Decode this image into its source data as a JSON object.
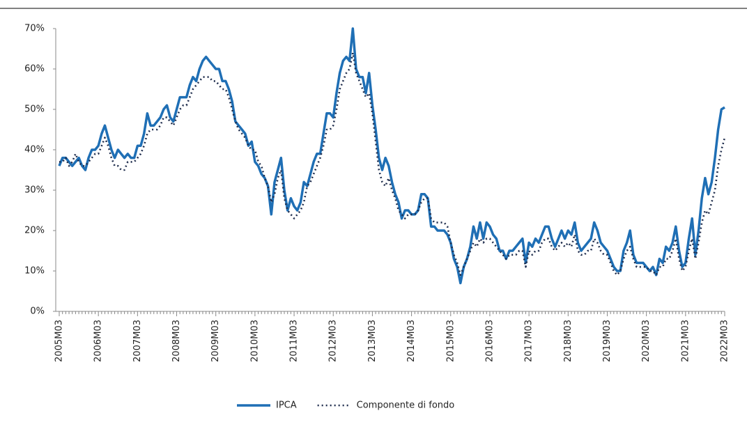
{
  "chart_data": {
    "type": "line",
    "categories": [
      "2005M03",
      null,
      null,
      null,
      null,
      null,
      null,
      null,
      null,
      null,
      null,
      null,
      "2006M03",
      null,
      null,
      null,
      null,
      null,
      null,
      null,
      null,
      null,
      null,
      null,
      "2007M03",
      null,
      null,
      null,
      null,
      null,
      null,
      null,
      null,
      null,
      null,
      null,
      "2008M03",
      null,
      null,
      null,
      null,
      null,
      null,
      null,
      null,
      null,
      null,
      null,
      "2009M03",
      null,
      null,
      null,
      null,
      null,
      null,
      null,
      null,
      null,
      null,
      null,
      "2010M03",
      null,
      null,
      null,
      null,
      null,
      null,
      null,
      null,
      null,
      null,
      null,
      "2011M03",
      null,
      null,
      null,
      null,
      null,
      null,
      null,
      null,
      null,
      null,
      null,
      "2012M03",
      null,
      null,
      null,
      null,
      null,
      null,
      null,
      null,
      null,
      null,
      null,
      "2013M03",
      null,
      null,
      null,
      null,
      null,
      null,
      null,
      null,
      null,
      null,
      null,
      "2014M03",
      null,
      null,
      null,
      null,
      null,
      null,
      null,
      null,
      null,
      null,
      null,
      "2015M03",
      null,
      null,
      null,
      null,
      null,
      null,
      null,
      null,
      null,
      null,
      null,
      "2016M03",
      null,
      null,
      null,
      null,
      null,
      null,
      null,
      null,
      null,
      null,
      null,
      "2017M03",
      null,
      null,
      null,
      null,
      null,
      null,
      null,
      null,
      null,
      null,
      null,
      "2018M03",
      null,
      null,
      null,
      null,
      null,
      null,
      null,
      null,
      null,
      null,
      null,
      "2019M03",
      null,
      null,
      null,
      null,
      null,
      null,
      null,
      null,
      null,
      null,
      null,
      "2020M03",
      null,
      null,
      null,
      null,
      null,
      null,
      null,
      null,
      null,
      null,
      null,
      "2021M03",
      null,
      null,
      null,
      null,
      null,
      null,
      null,
      null,
      null,
      null,
      null,
      "2022M03"
    ],
    "series": [
      {
        "name": "IPCA",
        "color": "#1f6fb5",
        "style": "solid",
        "values": [
          36,
          38,
          38,
          37,
          36,
          37,
          38,
          36,
          35,
          38,
          40,
          40,
          41,
          44,
          46,
          43,
          40,
          38,
          40,
          39,
          38,
          39,
          38,
          38,
          41,
          41,
          44,
          49,
          46,
          46,
          47,
          48,
          50,
          51,
          48,
          47,
          50,
          53,
          53,
          53,
          56,
          58,
          57,
          60,
          62,
          63,
          62,
          61,
          60,
          60,
          57,
          57,
          55,
          52,
          47,
          46,
          45,
          44,
          41,
          42,
          37,
          36,
          34,
          33,
          31,
          24,
          32,
          35,
          38,
          30,
          25,
          28,
          26,
          25,
          27,
          32,
          31,
          34,
          37,
          39,
          39,
          44,
          49,
          49,
          48,
          54,
          59,
          62,
          63,
          62,
          70,
          60,
          58,
          58,
          54,
          59,
          51,
          45,
          38,
          35,
          38,
          36,
          32,
          29,
          27,
          23,
          25,
          25,
          24,
          24,
          25,
          29,
          29,
          28,
          21,
          21,
          20,
          20,
          20,
          19,
          17,
          13,
          11,
          7,
          11,
          13,
          16,
          21,
          18,
          22,
          18,
          22,
          21,
          19,
          18,
          15,
          15,
          13,
          15,
          15,
          16,
          17,
          18,
          12,
          17,
          16,
          18,
          17,
          19,
          21,
          21,
          18,
          16,
          18,
          20,
          18,
          20,
          19,
          22,
          17,
          15,
          16,
          17,
          18,
          22,
          20,
          17,
          16,
          15,
          13,
          11,
          10,
          10,
          15,
          17,
          20,
          14,
          12,
          12,
          12,
          11,
          10,
          11,
          9,
          13,
          12,
          16,
          15,
          17,
          21,
          15,
          11,
          12,
          18,
          23,
          14,
          20,
          28,
          33,
          29,
          32,
          38,
          45,
          50,
          50.5
        ]
      },
      {
        "name": "Componente di fondo",
        "color": "#1f2d4d",
        "style": "dotted",
        "values": [
          37,
          37,
          38,
          36,
          37,
          39,
          37,
          36,
          36,
          37,
          38,
          39,
          39,
          41,
          43,
          41,
          38,
          36,
          36,
          35,
          35,
          37,
          37,
          37,
          38,
          39,
          41,
          44,
          45,
          45,
          45,
          46,
          48,
          48,
          47,
          46,
          48,
          50,
          51,
          51,
          53,
          55,
          56,
          57,
          58,
          58,
          58,
          57,
          57,
          56,
          55,
          55,
          53,
          50,
          47,
          45,
          44,
          43,
          41,
          40,
          40,
          37,
          36,
          33,
          31,
          27,
          29,
          33,
          35,
          28,
          25,
          24,
          23,
          24,
          25,
          27,
          31,
          32,
          34,
          36,
          38,
          41,
          45,
          45,
          46,
          50,
          55,
          57,
          59,
          60,
          64,
          59,
          57,
          55,
          53,
          54,
          49,
          42,
          35,
          32,
          31,
          33,
          30,
          28,
          25,
          24,
          23,
          24,
          24,
          24,
          25,
          27,
          28,
          28,
          23,
          22,
          22,
          22,
          22,
          21,
          17,
          14,
          12,
          9,
          11,
          13,
          15,
          17,
          16,
          18,
          17,
          18,
          18,
          17,
          16,
          15,
          14,
          13,
          14,
          14,
          14,
          15,
          15,
          11,
          15,
          14,
          15,
          15,
          17,
          18,
          18,
          16,
          15,
          16,
          17,
          16,
          17,
          16,
          19,
          15,
          14,
          14,
          15,
          15,
          18,
          17,
          15,
          14,
          14,
          12,
          10,
          9,
          10,
          13,
          15,
          16,
          13,
          11,
          11,
          11,
          11,
          10,
          10,
          9,
          11,
          11,
          13,
          13,
          15,
          18,
          13,
          10,
          11,
          15,
          18,
          13,
          17,
          22,
          25,
          24,
          27,
          30,
          36,
          40,
          43
        ]
      }
    ],
    "ylim": [
      0,
      70
    ],
    "yticks": [
      {
        "value": 0,
        "label": "0%"
      },
      {
        "value": 10,
        "label": "10%"
      },
      {
        "value": 20,
        "label": "20%"
      },
      {
        "value": 30,
        "label": "30%"
      },
      {
        "value": 40,
        "label": "40%"
      },
      {
        "value": 50,
        "label": "50%"
      },
      {
        "value": 60,
        "label": "60%"
      },
      {
        "value": 70,
        "label": "70%"
      }
    ],
    "grid": false,
    "legend": "bottom"
  }
}
